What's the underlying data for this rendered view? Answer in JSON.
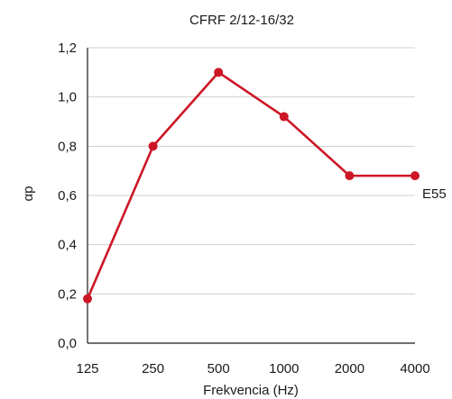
{
  "chart_data": {
    "type": "line",
    "title": "CFRF 2/12-16/32",
    "xlabel": "Frekvencia (Hz)",
    "ylabel": "αp",
    "categories": [
      "125",
      "250",
      "500",
      "1000",
      "2000",
      "4000"
    ],
    "y_ticks": [
      "0,0",
      "0,2",
      "0,4",
      "0,6",
      "0,8",
      "1,0",
      "1,2"
    ],
    "ylim": [
      0,
      1.2
    ],
    "grid": "horizontal",
    "series": [
      {
        "name": "E55",
        "color": "#cc1626",
        "values": [
          0.18,
          0.8,
          1.1,
          0.92,
          0.68,
          0.68
        ]
      }
    ]
  }
}
